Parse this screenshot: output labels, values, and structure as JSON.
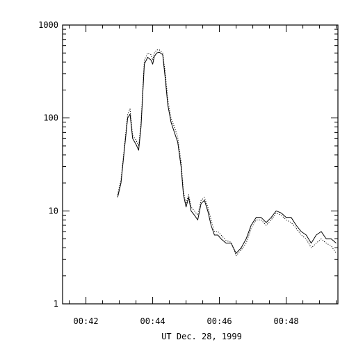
{
  "chart_data": {
    "type": "line",
    "title": "",
    "xlabel": "UT Dec. 28, 1999",
    "ylabel": "",
    "xscale": "linear",
    "yscale": "log",
    "xlim_minutes": [
      41.3,
      49.55
    ],
    "ylim": [
      1,
      1000
    ],
    "x_ticks": [
      {
        "value": 42,
        "label": "00:42"
      },
      {
        "value": 44,
        "label": "00:44"
      },
      {
        "value": 46,
        "label": "00:46"
      },
      {
        "value": 48,
        "label": "00:48"
      }
    ],
    "y_ticks": [
      {
        "value": 1,
        "label": "1"
      },
      {
        "value": 10,
        "label": "10"
      },
      {
        "value": 100,
        "label": "100"
      },
      {
        "value": 1000,
        "label": "1000"
      }
    ],
    "grid": false,
    "legend": "none",
    "series": [
      {
        "style": "solid",
        "color": "#000000",
        "x": [
          42.95,
          43.05,
          43.15,
          43.25,
          43.32,
          43.4,
          43.5,
          43.58,
          43.65,
          43.75,
          43.85,
          43.95,
          44.0,
          44.05,
          44.12,
          44.2,
          44.3,
          44.38,
          44.45,
          44.55,
          44.65,
          44.75,
          44.85,
          44.92,
          45.0,
          45.08,
          45.15,
          45.25,
          45.35,
          45.45,
          45.55,
          45.65,
          45.75,
          45.85,
          45.95,
          46.05,
          46.2,
          46.35,
          46.5,
          46.65,
          46.8,
          46.95,
          47.1,
          47.25,
          47.4,
          47.55,
          47.7,
          47.85,
          48.0,
          48.15,
          48.3,
          48.45,
          48.6,
          48.75,
          48.9,
          49.05,
          49.2,
          49.35,
          49.5
        ],
        "y": [
          14,
          20,
          45,
          100,
          110,
          60,
          52,
          45,
          80,
          380,
          450,
          420,
          380,
          460,
          500,
          510,
          480,
          260,
          140,
          90,
          70,
          55,
          30,
          15,
          11,
          14,
          10,
          9,
          8,
          12,
          13,
          10,
          7,
          5.5,
          5.5,
          5,
          4.5,
          4.5,
          3.5,
          4,
          5,
          7,
          8.5,
          8.5,
          7.5,
          8.5,
          10,
          9.5,
          8.5,
          8.5,
          7,
          6,
          5.5,
          4.5,
          5.5,
          6,
          5,
          5,
          4.5
        ]
      },
      {
        "style": "dotted",
        "color": "#000000",
        "x": [
          42.95,
          43.05,
          43.15,
          43.25,
          43.32,
          43.4,
          43.5,
          43.58,
          43.65,
          43.75,
          43.85,
          43.95,
          44.0,
          44.05,
          44.12,
          44.2,
          44.3,
          44.38,
          44.45,
          44.55,
          44.65,
          44.75,
          44.85,
          44.92,
          45.0,
          45.08,
          45.15,
          45.25,
          45.35,
          45.45,
          45.55,
          45.65,
          45.75,
          45.85,
          45.95,
          46.05,
          46.2,
          46.35,
          46.5,
          46.65,
          46.8,
          46.95,
          47.1,
          47.25,
          47.4,
          47.55,
          47.7,
          47.85,
          48.0,
          48.15,
          48.3,
          48.45,
          48.6,
          48.75,
          48.9,
          49.05,
          49.2,
          49.35,
          49.5
        ],
        "y": [
          15,
          22,
          48,
          110,
          125,
          65,
          58,
          50,
          90,
          420,
          500,
          480,
          420,
          500,
          540,
          540,
          500,
          300,
          160,
          100,
          80,
          62,
          34,
          16,
          12,
          15,
          11,
          10,
          9,
          13,
          14,
          11,
          8,
          6,
          6,
          5.5,
          4.8,
          4.6,
          3.3,
          3.8,
          4.5,
          6.5,
          8,
          8,
          7,
          8,
          9.5,
          9,
          8,
          7.5,
          6.5,
          5.5,
          5,
          4,
          4.5,
          5,
          4.5,
          4.2,
          3.5
        ]
      }
    ]
  }
}
